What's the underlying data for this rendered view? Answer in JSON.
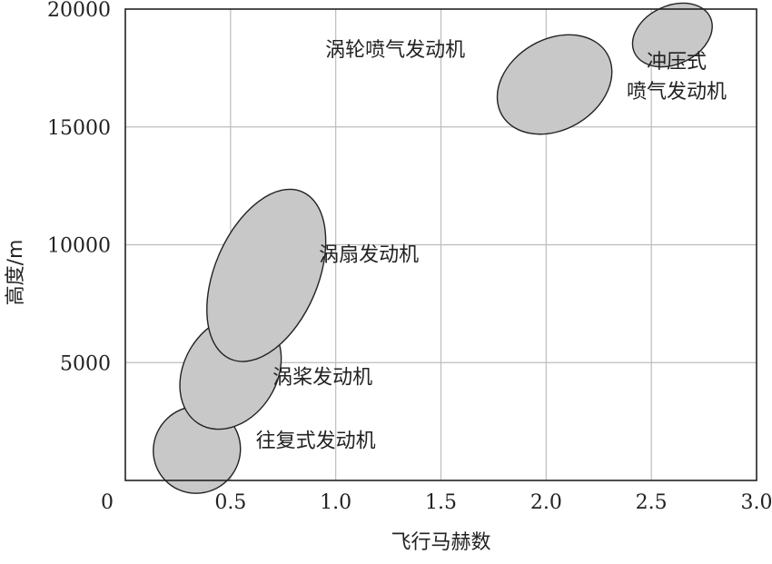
{
  "chart_data": {
    "type": "scatter",
    "title": "",
    "xlabel": "飞行马赫数",
    "ylabel": "高度/m",
    "xlim": [
      0,
      3.0
    ],
    "ylim": [
      0,
      20000
    ],
    "grid": true,
    "x_ticks": [
      0,
      0.5,
      1.0,
      1.5,
      2.0,
      2.5,
      3.0
    ],
    "x_tick_labels": [
      "0",
      "0.5",
      "1.0",
      "1.5",
      "2.0",
      "2.5",
      "3.0"
    ],
    "y_ticks": [
      5000,
      10000,
      15000,
      20000
    ],
    "y_tick_labels": [
      "5000",
      "10000",
      "15000",
      "20000"
    ],
    "regions": [
      {
        "label": "往复式发动机",
        "label_lines": [
          "往复式发动机"
        ],
        "center": [
          0.34,
          1300
        ],
        "extent_mach": 0.3,
        "extent_altitude": 2600,
        "label_at": [
          0.62,
          1400
        ],
        "color": "#c8c8c8"
      },
      {
        "label": "涡桨发动机",
        "label_lines": [
          "涡桨发动机"
        ],
        "center": [
          0.5,
          4600
        ],
        "extent_mach": 0.3,
        "extent_altitude": 4400,
        "label_at": [
          0.7,
          4100
        ],
        "color": "#c8c8c8"
      },
      {
        "label": "涡扇发动机",
        "label_lines": [
          "涡扇发动机"
        ],
        "center": [
          0.67,
          8700
        ],
        "extent_mach": 0.34,
        "extent_altitude": 7100,
        "label_at": [
          0.92,
          9300
        ],
        "color": "#c8c8c8"
      },
      {
        "label": "涡轮喷气发动机",
        "label_lines": [
          "涡轮喷气发动机"
        ],
        "center": [
          2.04,
          16800
        ],
        "extent_mach": 0.5,
        "extent_altitude": 2600,
        "label_at": [
          0.95,
          18000
        ],
        "color": "#c8c8c8"
      },
      {
        "label": "冲压式喷气发动机",
        "label_lines": [
          "冲压式",
          "喷气发动机"
        ],
        "center": [
          2.6,
          18900
        ],
        "extent_mach": 0.36,
        "extent_altitude": 1500,
        "label_at": [
          2.62,
          17500
        ],
        "color": "#c8c8c8"
      }
    ]
  }
}
